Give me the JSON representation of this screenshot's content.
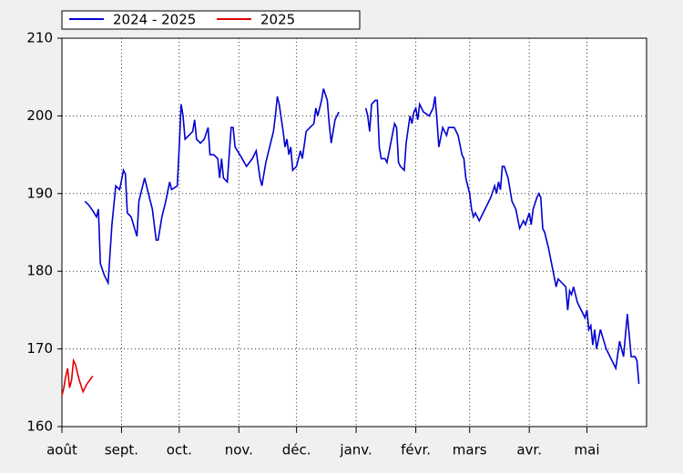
{
  "chart_data": {
    "type": "line",
    "series": [
      {
        "name": "2024 - 2025",
        "color": "#0000d0",
        "x": [
          12,
          14,
          16,
          18,
          19,
          20,
          22,
          24,
          26,
          28,
          30,
          32,
          33,
          34,
          36,
          39,
          40,
          42,
          43,
          45,
          47,
          49,
          50,
          52,
          54,
          56,
          57,
          60,
          61,
          62,
          63,
          64,
          66,
          68,
          69,
          70,
          72,
          74,
          76,
          77,
          79,
          81,
          82,
          83,
          84,
          86,
          88,
          89,
          90,
          93,
          96,
          99,
          101,
          103,
          104,
          106,
          108,
          110,
          111,
          112,
          113,
          115,
          116,
          117,
          118,
          119,
          120,
          122,
          124,
          125,
          127,
          129,
          131,
          132,
          133,
          135,
          136,
          138,
          139,
          140,
          142,
          144,
          150,
          158,
          159,
          160,
          161,
          163,
          164,
          165,
          166,
          168,
          169,
          173,
          174,
          175,
          176,
          178,
          179,
          181,
          182,
          183,
          184,
          185,
          186,
          188,
          191,
          193,
          194,
          195,
          196,
          198,
          200,
          201,
          204,
          206,
          208,
          209,
          210,
          212,
          213,
          214,
          215,
          217,
          219,
          221,
          223,
          225,
          226,
          227,
          228,
          229,
          230,
          232,
          234,
          236,
          238,
          240,
          241,
          243,
          244,
          245,
          247,
          248,
          249,
          250,
          251,
          253,
          255,
          257,
          258,
          260,
          262,
          263,
          264,
          265,
          266,
          268,
          270,
          272,
          273,
          274,
          275,
          276,
          277,
          278,
          280,
          283,
          285,
          288,
          290,
          292,
          294,
          296,
          298,
          299,
          300
        ],
        "values": [
          189,
          188.5,
          187.8,
          187,
          188,
          181,
          179.5,
          178.5,
          186,
          191,
          190.5,
          193,
          192.5,
          187.5,
          187,
          184.5,
          189,
          191,
          192,
          190,
          188,
          184,
          184,
          187,
          189,
          191.5,
          190.5,
          191,
          196,
          201.5,
          200,
          197,
          197.5,
          198,
          199.5,
          197,
          196.5,
          197,
          198.5,
          195,
          195,
          194.5,
          192,
          194.5,
          192,
          191.5,
          198.5,
          198.5,
          196,
          194.8,
          193.5,
          194.5,
          195.5,
          192,
          191,
          194,
          196,
          198,
          200,
          202.5,
          201.5,
          198,
          196,
          197,
          195,
          196,
          193,
          193.5,
          195.5,
          194.5,
          198,
          198.5,
          199,
          201,
          200,
          202,
          203.5,
          202,
          199,
          196.5,
          199.5,
          200.5,
          null,
          201,
          200,
          198,
          201.5,
          202,
          202,
          196,
          194.5,
          194.5,
          194,
          199,
          198.5,
          194,
          193.5,
          193,
          196.5,
          200,
          199,
          200.5,
          201,
          199.5,
          201.5,
          200.5,
          200,
          201,
          202.5,
          199.5,
          196,
          198.5,
          197.5,
          198.5,
          198.5,
          197.5,
          195,
          194.5,
          192,
          190,
          188,
          187,
          187.5,
          186.5,
          187.5,
          188.5,
          189.5,
          191,
          190,
          191.5,
          190.5,
          193.5,
          193.5,
          192,
          189,
          188,
          185.5,
          186.5,
          186,
          187.5,
          186,
          188,
          189.5,
          190,
          189.5,
          185.5,
          185,
          183,
          180.5,
          178,
          179,
          178.5,
          178,
          175,
          177.5,
          177,
          178,
          176,
          175,
          174,
          175,
          172.5,
          173,
          170.5,
          172.5,
          170,
          172.5,
          170,
          169,
          167.5,
          171,
          169,
          174.5,
          169,
          169,
          168.5,
          165.5
        ]
      },
      {
        "name": "2025",
        "color": "#e00000",
        "x": [
          0,
          1,
          2,
          3,
          4,
          5,
          6,
          7,
          9,
          11,
          13,
          16
        ],
        "values": [
          164,
          165,
          166.5,
          167.5,
          165,
          166,
          168.5,
          168,
          166,
          164.5,
          165.5,
          166.5
        ]
      }
    ],
    "xlim": [
      0,
      304
    ],
    "xticks": [
      {
        "value": 0,
        "label": "août"
      },
      {
        "value": 31,
        "label": "sept."
      },
      {
        "value": 61,
        "label": "oct."
      },
      {
        "value": 92,
        "label": "nov."
      },
      {
        "value": 122,
        "label": "déc."
      },
      {
        "value": 153,
        "label": "janv."
      },
      {
        "value": 184,
        "label": "févr."
      },
      {
        "value": 212,
        "label": "mars"
      },
      {
        "value": 243,
        "label": "avr."
      },
      {
        "value": 273,
        "label": "mai"
      }
    ],
    "ylim": [
      160,
      210
    ],
    "yticks": [
      160,
      170,
      180,
      190,
      200,
      210
    ],
    "grid": true,
    "legend": "top"
  }
}
